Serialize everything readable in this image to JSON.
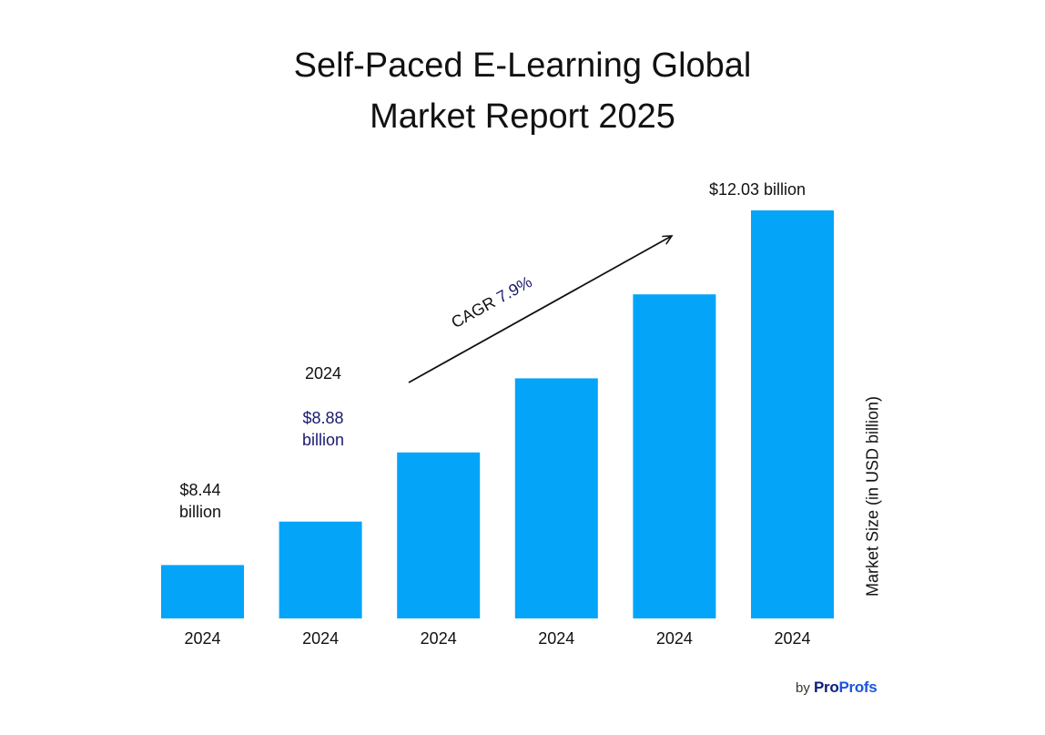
{
  "title_lines": [
    "Self-Paced E-Learning Global",
    "Market Report 2025"
  ],
  "chart_data": {
    "type": "bar",
    "title": "Self-Paced E-Learning Global Market Report 2025",
    "categories": [
      "2024",
      "2024",
      "2024",
      "2024",
      "2024",
      "2024"
    ],
    "values": [
      8.44,
      8.88,
      9.58,
      10.33,
      11.18,
      12.03
    ],
    "ylabel": "Market Size (in USD billion)",
    "xlabel": "",
    "ylim": [
      7.9,
      12.3
    ],
    "bar_color": "#04a4f9",
    "annotations": {
      "first_value": "$8.44\nbillion",
      "second_year": "2024",
      "second_value": "$8.88\nbillion",
      "last_value": "$12.03 billion",
      "cagr": "CAGR 7.9%"
    }
  },
  "credit": {
    "by": "by",
    "brand_pro": "Pro",
    "brand_profs": "Profs"
  },
  "colors": {
    "accent": "#04a4f9",
    "value_highlight": "#1a1a6e"
  }
}
